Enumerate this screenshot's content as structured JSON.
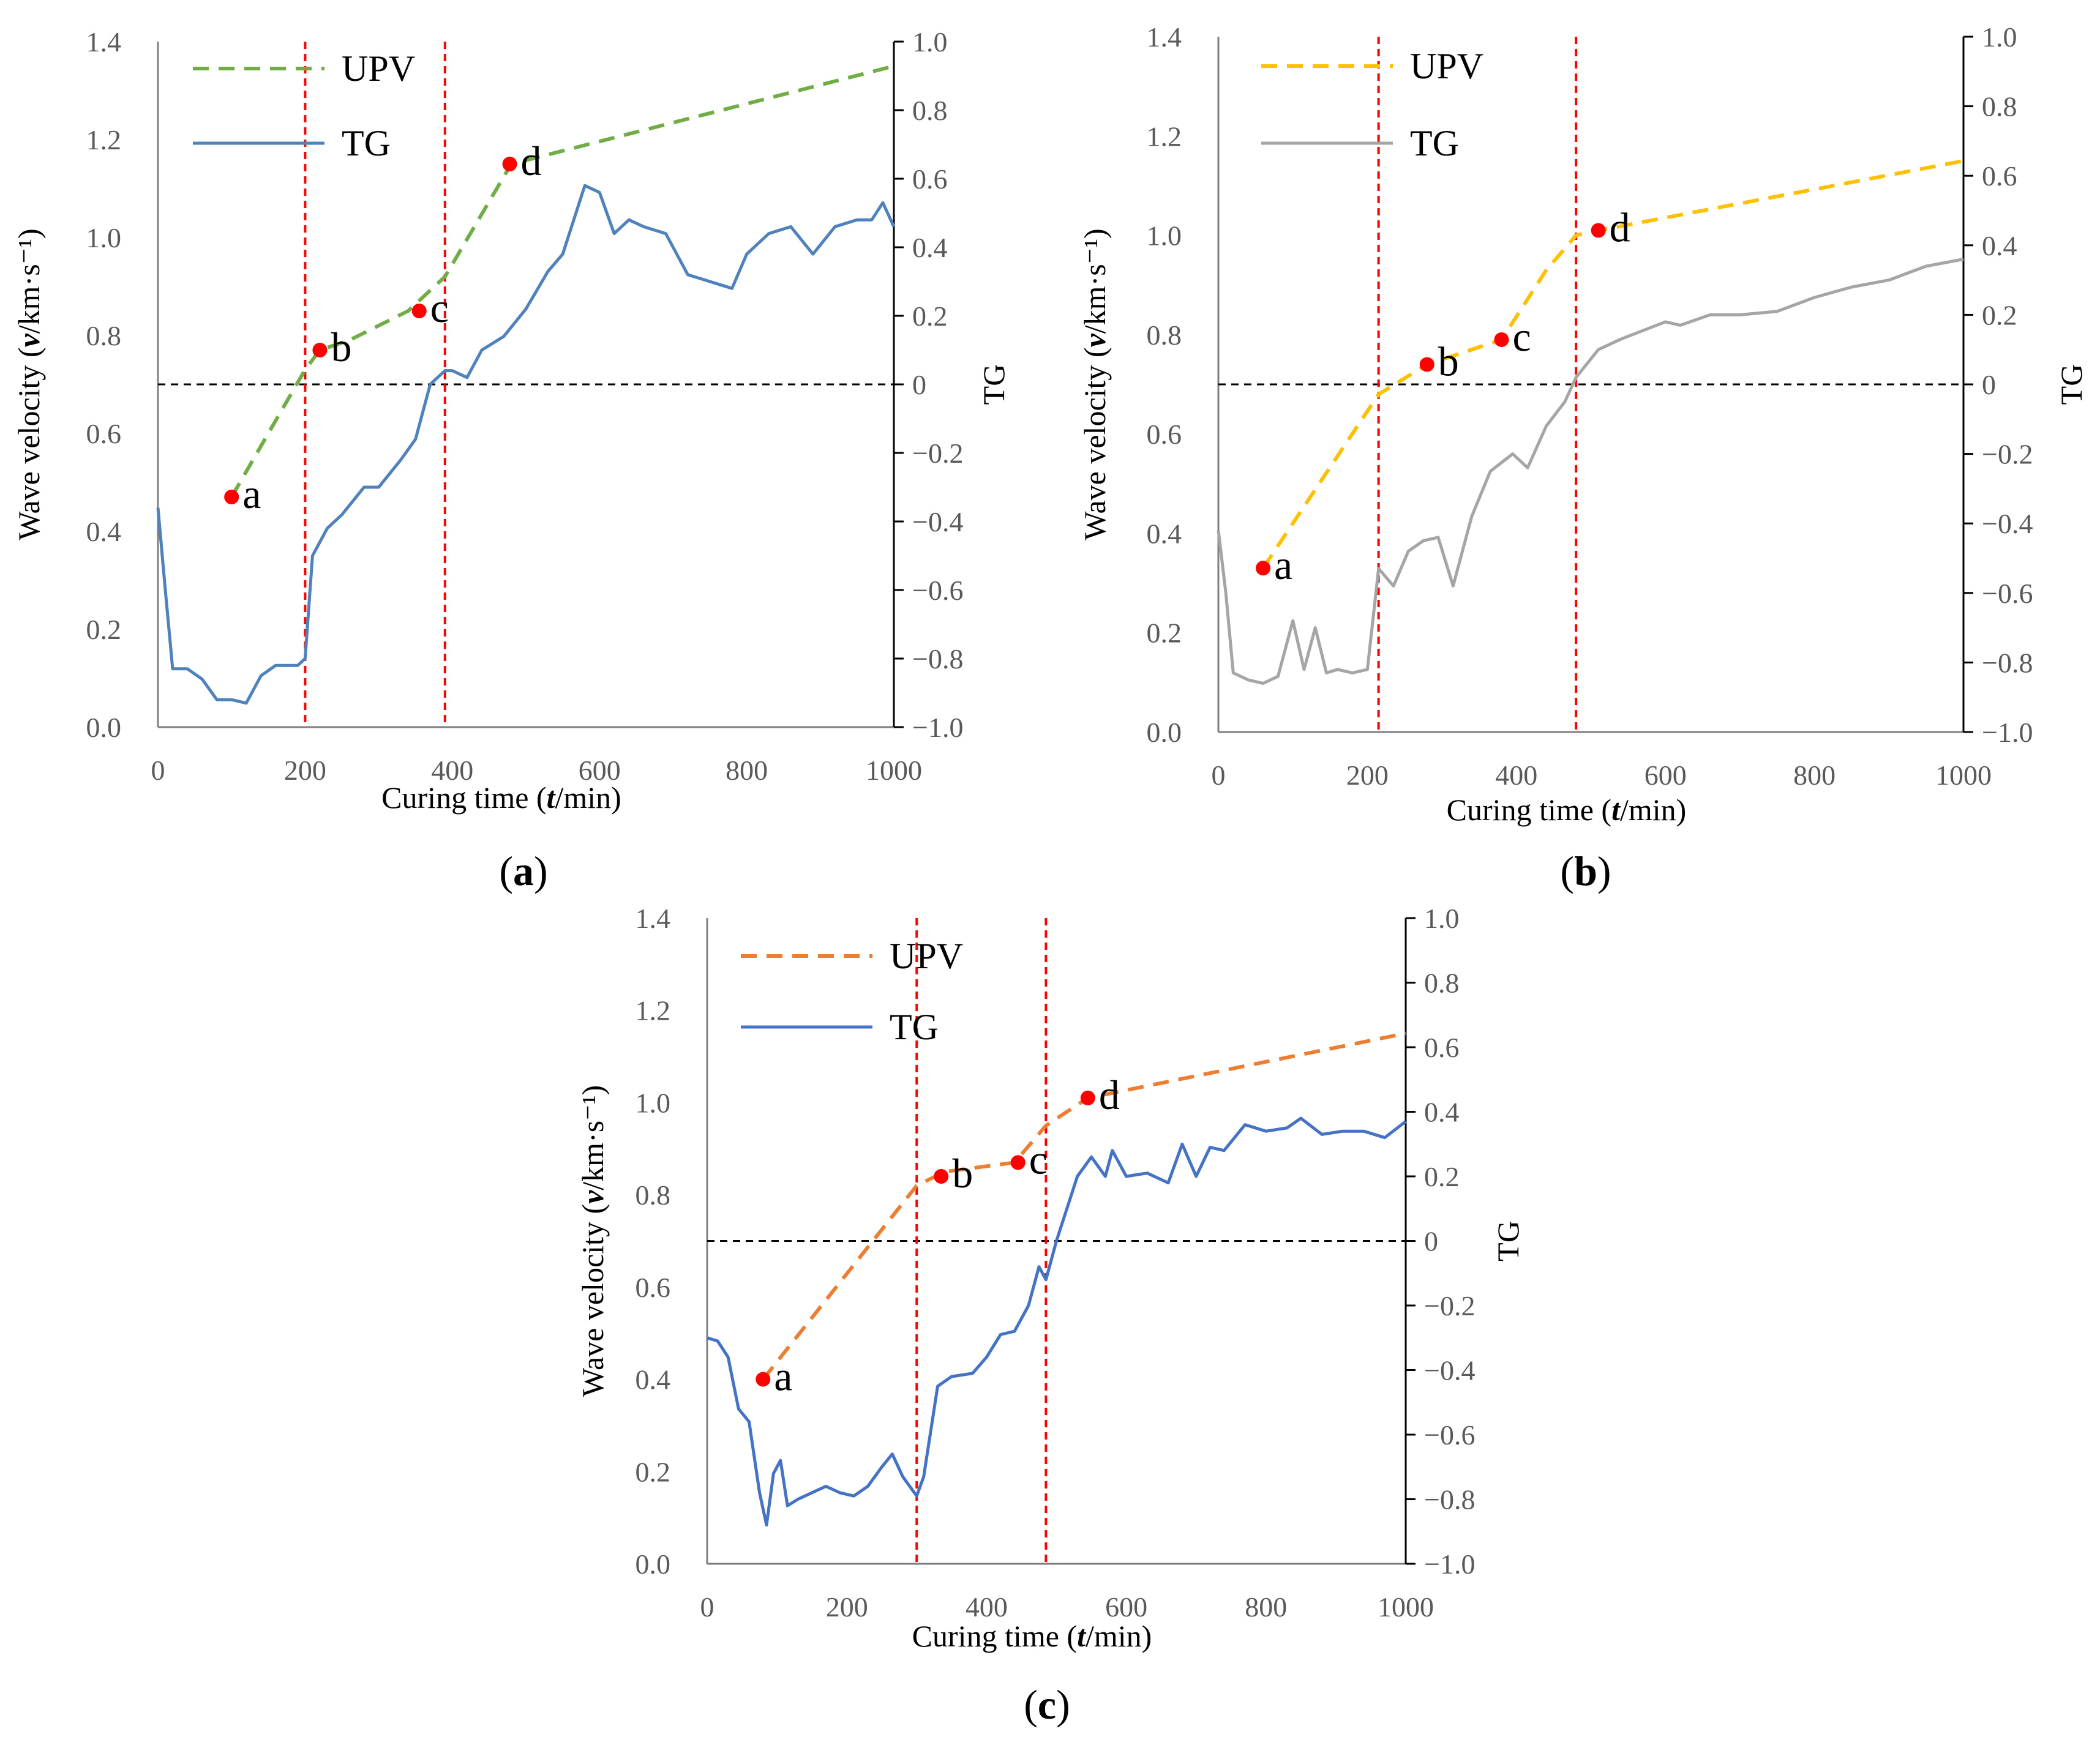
{
  "chart_data": [
    {
      "panel": "a",
      "type": "line",
      "caption_open": "(",
      "caption_letter": "a",
      "caption_close": ")",
      "xlabel": "Curing time (t/min)",
      "ylabel": "Wave velocity (v/km·s⁻¹)",
      "y2label": "TG",
      "xlim": [
        0,
        1000
      ],
      "ylim": [
        0,
        1.4
      ],
      "y2lim": [
        -1.0,
        1.0
      ],
      "x_ticks": [
        "0",
        "200",
        "400",
        "600",
        "800",
        "1000"
      ],
      "y_ticks": [
        "0.0",
        "0.2",
        "0.4",
        "0.6",
        "0.8",
        "1.0",
        "1.2",
        "1.4"
      ],
      "y2_ticks": [
        "−1.0",
        "−0.8",
        "−0.6",
        "−0.4",
        "−0.2",
        "0",
        "0.2",
        "0.4",
        "0.6",
        "0.8",
        "1.0"
      ],
      "y2_tick_values": [
        -1.0,
        -0.8,
        -0.6,
        -0.4,
        -0.2,
        0,
        0.2,
        0.4,
        0.6,
        0.8,
        1.0
      ],
      "legend": [
        "UPV",
        "TG"
      ],
      "colors": {
        "upv": "#70AD47",
        "tg": "#4F81BD"
      },
      "vlines": [
        200,
        390
      ],
      "series": [
        {
          "name": "UPV",
          "axis": "left",
          "style": "dashed",
          "x": [
            100,
            200,
            220,
            260,
            340,
            390,
            480,
            1000
          ],
          "y": [
            0.47,
            0.73,
            0.77,
            0.79,
            0.85,
            0.92,
            1.15,
            1.35
          ]
        },
        {
          "name": "TG",
          "axis": "right",
          "style": "solid",
          "x": [
            0,
            10,
            20,
            40,
            60,
            80,
            100,
            120,
            140,
            160,
            190,
            200,
            210,
            230,
            250,
            280,
            300,
            330,
            350,
            370,
            390,
            400,
            420,
            440,
            470,
            500,
            530,
            550,
            580,
            600,
            620,
            640,
            660,
            690,
            720,
            750,
            780,
            800,
            830,
            860,
            890,
            920,
            950,
            970,
            985,
            1000
          ],
          "y": [
            -0.36,
            -0.6,
            -0.83,
            -0.83,
            -0.86,
            -0.92,
            -0.92,
            -0.93,
            -0.85,
            -0.82,
            -0.82,
            -0.8,
            -0.5,
            -0.42,
            -0.38,
            -0.3,
            -0.3,
            -0.22,
            -0.16,
            0.0,
            0.04,
            0.04,
            0.02,
            0.1,
            0.14,
            0.22,
            0.33,
            0.38,
            0.58,
            0.56,
            0.44,
            0.48,
            0.46,
            0.44,
            0.32,
            0.3,
            0.28,
            0.38,
            0.44,
            0.46,
            0.38,
            0.46,
            0.48,
            0.48,
            0.53,
            0.46
          ]
        }
      ],
      "points": [
        {
          "label": "a",
          "x": 100,
          "y": 0.47
        },
        {
          "label": "b",
          "x": 220,
          "y": 0.77
        },
        {
          "label": "c",
          "x": 355,
          "y": 0.85
        },
        {
          "label": "d",
          "x": 478,
          "y": 1.15
        }
      ]
    },
    {
      "panel": "b",
      "type": "line",
      "caption_open": "(",
      "caption_letter": "b",
      "caption_close": ")",
      "xlabel": "Curing time (t/min)",
      "ylabel": "Wave velocity (v/km·s⁻¹)",
      "y2label": "TG",
      "xlim": [
        0,
        1000
      ],
      "ylim": [
        0,
        1.4
      ],
      "y2lim": [
        -1.0,
        1.0
      ],
      "x_ticks": [
        "0",
        "200",
        "400",
        "600",
        "800",
        "1000"
      ],
      "y_ticks": [
        "0.0",
        "0.2",
        "0.4",
        "0.6",
        "0.8",
        "1.0",
        "1.2",
        "1.4"
      ],
      "y2_ticks": [
        "−1.0",
        "−0.8",
        "−0.6",
        "−0.4",
        "−0.2",
        "0",
        "0.2",
        "0.4",
        "0.6",
        "0.8",
        "1.0"
      ],
      "y2_tick_values": [
        -1.0,
        -0.8,
        -0.6,
        -0.4,
        -0.2,
        0,
        0.2,
        0.4,
        0.6,
        0.8,
        1.0
      ],
      "legend": [
        "UPV",
        "TG"
      ],
      "colors": {
        "upv": "#FFC000",
        "tg": "#A5A5A5"
      },
      "vlines": [
        215,
        480
      ],
      "series": [
        {
          "name": "UPV",
          "axis": "left",
          "style": "dashed",
          "x": [
            60,
            215,
            280,
            380,
            440,
            480,
            510,
            1000
          ],
          "y": [
            0.33,
            0.68,
            0.74,
            0.79,
            0.93,
            1.0,
            1.01,
            1.15
          ]
        },
        {
          "name": "TG",
          "axis": "right",
          "style": "solid",
          "x": [
            0,
            10,
            20,
            40,
            60,
            80,
            100,
            115,
            130,
            145,
            160,
            180,
            200,
            215,
            235,
            255,
            275,
            295,
            315,
            340,
            365,
            395,
            415,
            440,
            465,
            480,
            510,
            540,
            600,
            620,
            660,
            700,
            750,
            800,
            850,
            900,
            950,
            1000
          ],
          "y": [
            -0.42,
            -0.6,
            -0.83,
            -0.85,
            -0.86,
            -0.84,
            -0.68,
            -0.82,
            -0.7,
            -0.83,
            -0.82,
            -0.83,
            -0.82,
            -0.53,
            -0.58,
            -0.48,
            -0.45,
            -0.44,
            -0.58,
            -0.38,
            -0.25,
            -0.2,
            -0.24,
            -0.12,
            -0.05,
            0.02,
            0.1,
            0.13,
            0.18,
            0.17,
            0.2,
            0.2,
            0.21,
            0.25,
            0.28,
            0.3,
            0.34,
            0.36
          ]
        }
      ],
      "points": [
        {
          "label": "a",
          "x": 60,
          "y": 0.33
        },
        {
          "label": "b",
          "x": 280,
          "y": 0.74
        },
        {
          "label": "c",
          "x": 380,
          "y": 0.79
        },
        {
          "label": "d",
          "x": 510,
          "y": 1.01
        }
      ]
    },
    {
      "panel": "c",
      "type": "line",
      "caption_open": "(",
      "caption_letter": "c",
      "caption_close": ")",
      "xlabel": "Curing time (t/min)",
      "ylabel": "Wave velocity (v/km·s⁻¹)",
      "y2label": "TG",
      "xlim": [
        0,
        1000
      ],
      "ylim": [
        0,
        1.4
      ],
      "y2lim": [
        -1.0,
        1.0
      ],
      "x_ticks": [
        "0",
        "200",
        "400",
        "600",
        "800",
        "1000"
      ],
      "y_ticks": [
        "0.0",
        "0.2",
        "0.4",
        "0.6",
        "0.8",
        "1.0",
        "1.2",
        "1.4"
      ],
      "y2_ticks": [
        "−1.0",
        "−0.8",
        "−0.6",
        "−0.4",
        "−0.2",
        "0",
        "0.2",
        "0.4",
        "0.6",
        "0.8",
        "1.0"
      ],
      "y2_tick_values": [
        -1.0,
        -0.8,
        -0.6,
        -0.4,
        -0.2,
        0,
        0.2,
        0.4,
        0.6,
        0.8,
        1.0
      ],
      "legend": [
        "UPV",
        "TG"
      ],
      "colors": {
        "upv": "#ED7D31",
        "tg": "#4472C4"
      },
      "vlines": [
        300,
        485
      ],
      "series": [
        {
          "name": "UPV",
          "axis": "left",
          "style": "dashed",
          "x": [
            80,
            300,
            340,
            440,
            485,
            545,
            1000
          ],
          "y": [
            0.4,
            0.82,
            0.85,
            0.87,
            0.95,
            1.01,
            1.15
          ]
        },
        {
          "name": "TG",
          "axis": "right",
          "style": "solid",
          "x": [
            0,
            15,
            30,
            45,
            60,
            75,
            85,
            95,
            105,
            115,
            130,
            150,
            170,
            190,
            210,
            230,
            250,
            265,
            280,
            300,
            310,
            330,
            350,
            380,
            400,
            420,
            440,
            460,
            475,
            485,
            500,
            530,
            550,
            570,
            580,
            600,
            630,
            660,
            680,
            700,
            720,
            740,
            770,
            800,
            830,
            850,
            880,
            910,
            940,
            970,
            1000
          ],
          "y": [
            -0.3,
            -0.31,
            -0.36,
            -0.52,
            -0.56,
            -0.78,
            -0.88,
            -0.72,
            -0.68,
            -0.82,
            -0.8,
            -0.78,
            -0.76,
            -0.78,
            -0.79,
            -0.76,
            -0.7,
            -0.66,
            -0.73,
            -0.79,
            -0.73,
            -0.45,
            -0.42,
            -0.41,
            -0.36,
            -0.29,
            -0.28,
            -0.2,
            -0.08,
            -0.12,
            0.0,
            0.2,
            0.26,
            0.2,
            0.28,
            0.2,
            0.21,
            0.18,
            0.3,
            0.2,
            0.29,
            0.28,
            0.36,
            0.34,
            0.35,
            0.38,
            0.33,
            0.34,
            0.34,
            0.32,
            0.37
          ]
        }
      ],
      "points": [
        {
          "label": "a",
          "x": 80,
          "y": 0.4
        },
        {
          "label": "b",
          "x": 335,
          "y": 0.84
        },
        {
          "label": "c",
          "x": 445,
          "y": 0.87
        },
        {
          "label": "d",
          "x": 545,
          "y": 1.01
        }
      ]
    }
  ]
}
